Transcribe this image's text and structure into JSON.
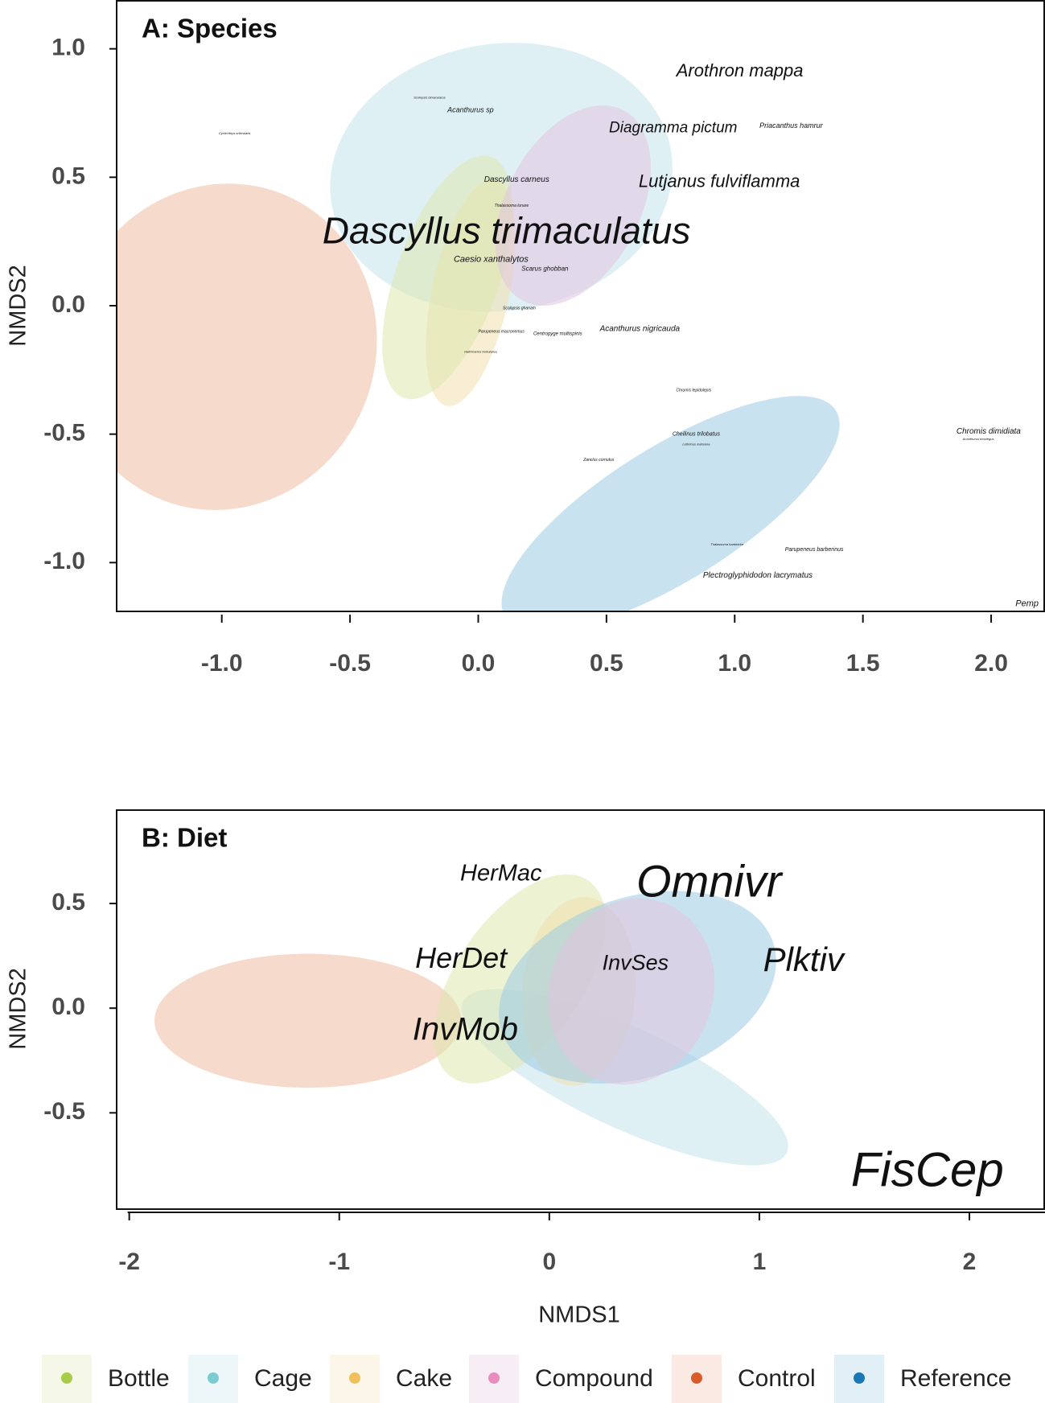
{
  "legend": {
    "items": [
      {
        "name": "Bottle",
        "color": "#a6cc4a",
        "fill": "#dde7ad"
      },
      {
        "name": "Cage",
        "color": "#7accd1",
        "fill": "#c4e4ec"
      },
      {
        "name": "Cake",
        "color": "#f0c15a",
        "fill": "#f2e0ae"
      },
      {
        "name": "Compound",
        "color": "#e88bbd",
        "fill": "#e2c5de"
      },
      {
        "name": "Control",
        "color": "#d95a2b",
        "fill": "#efbba3"
      },
      {
        "name": "Reference",
        "color": "#1a78b5",
        "fill": "#9ccae3"
      }
    ]
  },
  "chart_data": [
    {
      "type": "scatter",
      "title": "A: Species",
      "xlabel": "",
      "ylabel": "NMDS2",
      "xlim": [
        -1.41,
        2.21
      ],
      "ylim": [
        -1.19,
        1.19
      ],
      "xticks": [
        "-1.0",
        "-0.5",
        "0.0",
        "0.5",
        "1.0",
        "1.5",
        "2.0"
      ],
      "xtick_values": [
        -1.0,
        -0.5,
        0.0,
        0.5,
        1.0,
        1.5,
        2.0
      ],
      "yticks": [
        "1.0",
        "0.5",
        "0.0",
        "-0.5",
        "-1.0"
      ],
      "ytick_values": [
        1.0,
        0.5,
        0.0,
        -0.5,
        -1.0
      ],
      "grid": false,
      "ellipses": [
        {
          "group": "Control",
          "cx": -1.0,
          "cy": -0.16,
          "rx": 0.6,
          "ry": 0.64,
          "angle": -20
        },
        {
          "group": "Cage",
          "cx": 0.09,
          "cy": 0.5,
          "rx": 0.67,
          "ry": 0.52,
          "angle": 8
        },
        {
          "group": "Cake",
          "cx": -0.03,
          "cy": 0.05,
          "rx": 0.45,
          "ry": 0.15,
          "angle": 78
        },
        {
          "group": "Bottle",
          "cx": -0.12,
          "cy": 0.11,
          "rx": 0.5,
          "ry": 0.2,
          "angle": 70
        },
        {
          "group": "Compound",
          "cx": 0.37,
          "cy": 0.39,
          "rx": 0.42,
          "ry": 0.26,
          "angle": 62
        },
        {
          "group": "Reference",
          "cx": 0.75,
          "cy": -0.81,
          "rx": 0.76,
          "ry": 0.26,
          "angle": 32
        }
      ],
      "labels": [
        {
          "text": "Arothron mappa",
          "x": 1.02,
          "y": 0.91,
          "size": 22
        },
        {
          "text": "Acanthurus sp",
          "x": -0.03,
          "y": 0.76,
          "size": 9
        },
        {
          "text": "Scolopsis bimaculatus",
          "x": -0.19,
          "y": 0.81,
          "size": 4
        },
        {
          "text": "Diagramma pictum",
          "x": 0.76,
          "y": 0.69,
          "size": 19
        },
        {
          "text": "Priacanthus hamrur",
          "x": 1.22,
          "y": 0.7,
          "size": 9
        },
        {
          "text": "Cyclichthys orbicularis",
          "x": -0.95,
          "y": 0.67,
          "size": 4
        },
        {
          "text": "Dascyllus carneus",
          "x": 0.15,
          "y": 0.49,
          "size": 10
        },
        {
          "text": "Lutjanus fulviflamma",
          "x": 0.94,
          "y": 0.48,
          "size": 22
        },
        {
          "text": "Thalassoma lunare",
          "x": 0.13,
          "y": 0.37,
          "size": 5
        },
        {
          "text": "Dascyllus trimaculatus",
          "x": 0.11,
          "y": 0.28,
          "size": 46
        },
        {
          "text": "Scarus ghobban",
          "x": 0.26,
          "y": 0.23,
          "size": 8
        },
        {
          "text": "Caesio xanthalytos",
          "x": 0.05,
          "y": 0.18,
          "size": 11
        },
        {
          "text": "Scolopsis ghanam",
          "x": 0.16,
          "y": -0.01,
          "size": 5
        },
        {
          "text": "Parupeneus macronemus",
          "x": 0.09,
          "y": -0.1,
          "size": 5
        },
        {
          "text": "Centropyge multispinis",
          "x": 0.31,
          "y": -0.11,
          "size": 6
        },
        {
          "text": "Acanthurus nigricauda",
          "x": 0.63,
          "y": -0.09,
          "size": 10
        },
        {
          "text": "Halichoeres hortulanus",
          "x": 0.01,
          "y": -0.18,
          "size": 4
        },
        {
          "text": "Chromis lepidolepis",
          "x": 0.84,
          "y": -0.33,
          "size": 5
        },
        {
          "text": "Cheilinus trilobatus",
          "x": 0.85,
          "y": -0.5,
          "size": 7
        },
        {
          "text": "Lethrinus mahsena",
          "x": 0.85,
          "y": -0.54,
          "size": 4
        },
        {
          "text": "Chromis dimidiata",
          "x": 1.99,
          "y": -0.49,
          "size": 10
        },
        {
          "text": "Acanthurus triostegus",
          "x": 1.95,
          "y": -0.52,
          "size": 4
        },
        {
          "text": "Zanclus cornutus",
          "x": 0.47,
          "y": -0.6,
          "size": 5
        },
        {
          "text": "Thalassoma hardwicke",
          "x": 0.97,
          "y": -0.93,
          "size": 4
        },
        {
          "text": "Parupeneus barberinus",
          "x": 1.31,
          "y": -0.95,
          "size": 7
        },
        {
          "text": "Plectroglyphidodon lacrymatus",
          "x": 1.09,
          "y": -1.05,
          "size": 10
        },
        {
          "text": "Pemp",
          "x": 2.14,
          "y": -1.16,
          "size": 11
        }
      ]
    },
    {
      "type": "scatter",
      "title": "B: Diet",
      "xlabel": "NMDS1",
      "ylabel": "NMDS2",
      "xlim": [
        -2.06,
        2.36
      ],
      "ylim": [
        -0.96,
        0.95
      ],
      "xticks": [
        "-2",
        "-1",
        "0",
        "1",
        "2"
      ],
      "xtick_values": [
        -2,
        -1,
        0,
        1,
        2
      ],
      "yticks": [
        "0.5",
        "0.0",
        "-0.5"
      ],
      "ytick_values": [
        0.5,
        0.0,
        -0.5
      ],
      "grid": false,
      "ellipses": [
        {
          "group": "Control",
          "cx": -1.15,
          "cy": -0.06,
          "rx": 0.73,
          "ry": 0.32,
          "angle": 0
        },
        {
          "group": "Cage",
          "cx": 0.36,
          "cy": -0.33,
          "rx": 0.85,
          "ry": 0.24,
          "angle": -25
        },
        {
          "group": "Bottle",
          "cx": -0.14,
          "cy": 0.14,
          "rx": 0.57,
          "ry": 0.3,
          "angle": 55
        },
        {
          "group": "Cake",
          "cx": 0.14,
          "cy": 0.08,
          "rx": 0.45,
          "ry": 0.27,
          "angle": 85
        },
        {
          "group": "Reference",
          "cx": 0.42,
          "cy": 0.1,
          "rx": 0.68,
          "ry": 0.43,
          "angle": 18
        },
        {
          "group": "Compound",
          "cx": 0.39,
          "cy": 0.08,
          "rx": 0.45,
          "ry": 0.39,
          "angle": 70
        }
      ],
      "labels": [
        {
          "text": "HerMac",
          "x": -0.23,
          "y": 0.64,
          "size": 29
        },
        {
          "text": "Omnivr",
          "x": 0.76,
          "y": 0.59,
          "size": 56
        },
        {
          "text": "HerDet",
          "x": -0.42,
          "y": 0.23,
          "size": 36
        },
        {
          "text": "InvSes",
          "x": 0.41,
          "y": 0.21,
          "size": 27
        },
        {
          "text": "Plktiv",
          "x": 1.21,
          "y": 0.22,
          "size": 42
        },
        {
          "text": "InvMob",
          "x": -0.4,
          "y": -0.11,
          "size": 40
        },
        {
          "text": "FisCep",
          "x": 1.8,
          "y": -0.79,
          "size": 60
        }
      ]
    }
  ]
}
